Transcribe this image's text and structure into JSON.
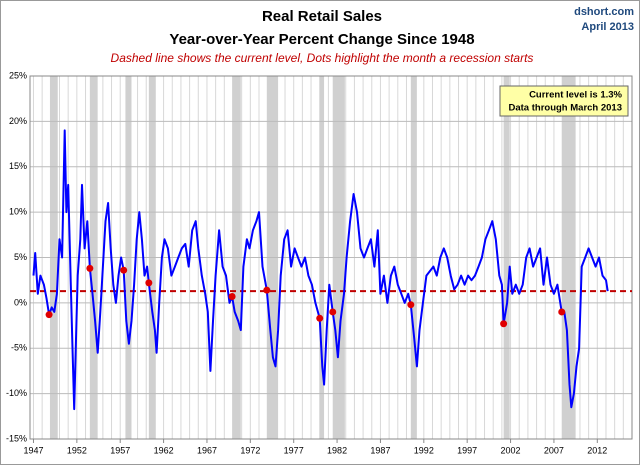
{
  "chart_data": {
    "type": "line",
    "title": "Real Retail Sales",
    "subtitle": "Year-over-Year Percent Change Since 1948",
    "note": "Dashed line shows the current level, Dots highlight the month a recession starts",
    "source": "dshort.com",
    "date": "April 2013",
    "annotation": [
      "Current level is 1.3%",
      "Data through March 2013"
    ],
    "color": "#0000ff",
    "x": [
      1947.0,
      1947.2,
      1947.5,
      1947.8,
      1948.2,
      1948.5,
      1948.8,
      1949.1,
      1949.4,
      1949.7,
      1950.0,
      1950.3,
      1950.6,
      1950.8,
      1951.0,
      1951.3,
      1951.5,
      1951.7,
      1951.9,
      1952.1,
      1952.4,
      1952.6,
      1952.9,
      1953.2,
      1953.5,
      1953.8,
      1954.1,
      1954.4,
      1954.7,
      1955.0,
      1955.3,
      1955.6,
      1955.9,
      1956.2,
      1956.5,
      1956.8,
      1957.1,
      1957.4,
      1957.7,
      1958.0,
      1958.3,
      1958.6,
      1958.9,
      1959.2,
      1959.5,
      1959.8,
      1960.1,
      1960.3,
      1960.7,
      1961.0,
      1961.2,
      1961.5,
      1961.8,
      1962.1,
      1962.5,
      1962.9,
      1963.3,
      1963.7,
      1964.1,
      1964.5,
      1964.9,
      1965.3,
      1965.7,
      1966.0,
      1966.4,
      1966.8,
      1967.1,
      1967.4,
      1967.7,
      1968.0,
      1968.4,
      1968.8,
      1969.2,
      1969.6,
      1969.9,
      1970.2,
      1970.6,
      1970.9,
      1971.2,
      1971.6,
      1971.9,
      1972.3,
      1972.7,
      1973.0,
      1973.4,
      1973.9,
      1974.3,
      1974.6,
      1974.9,
      1975.2,
      1975.5,
      1975.9,
      1976.3,
      1976.7,
      1977.1,
      1977.5,
      1977.9,
      1978.3,
      1978.7,
      1979.1,
      1979.5,
      1980.0,
      1980.3,
      1980.5,
      1980.8,
      1981.1,
      1981.5,
      1981.8,
      1982.1,
      1982.4,
      1982.8,
      1983.1,
      1983.5,
      1983.9,
      1984.3,
      1984.7,
      1985.1,
      1985.5,
      1985.9,
      1986.3,
      1986.7,
      1987.0,
      1987.4,
      1987.8,
      1988.2,
      1988.6,
      1989.0,
      1989.4,
      1989.8,
      1990.2,
      1990.5,
      1990.9,
      1991.2,
      1991.5,
      1991.9,
      1992.3,
      1992.7,
      1993.1,
      1993.5,
      1993.9,
      1994.3,
      1994.7,
      1995.1,
      1995.5,
      1995.9,
      1996.3,
      1996.7,
      1997.1,
      1997.5,
      1997.9,
      1998.3,
      1998.7,
      1999.1,
      1999.5,
      1999.9,
      2000.3,
      2000.7,
      2001.0,
      2001.2,
      2001.6,
      2001.9,
      2002.2,
      2002.6,
      2003.0,
      2003.4,
      2003.8,
      2004.2,
      2004.6,
      2005.0,
      2005.4,
      2005.8,
      2006.2,
      2006.6,
      2007.0,
      2007.4,
      2007.9,
      2008.2,
      2008.5,
      2008.8,
      2009.0,
      2009.3,
      2009.6,
      2009.9,
      2010.2,
      2010.6,
      2011.0,
      2011.4,
      2011.8,
      2012.2,
      2012.6,
      2013.0,
      2013.2
    ],
    "values": [
      3,
      5.5,
      1,
      3,
      2,
      0.5,
      -1.3,
      -0.5,
      -1,
      1,
      7,
      5,
      19,
      10,
      13,
      2,
      -5,
      -11.7,
      -4,
      3,
      7,
      13,
      6,
      9,
      3.8,
      1,
      -2,
      -5.5,
      -1,
      4,
      9,
      11,
      6,
      2,
      0,
      3,
      5,
      3.6,
      -2,
      -4.5,
      -2,
      2,
      7,
      10,
      7,
      3,
      4,
      2.2,
      -1,
      -3,
      -5.5,
      0,
      5,
      7,
      6,
      3,
      4,
      5,
      6,
      6.5,
      4,
      8,
      9,
      6,
      3,
      1,
      -1,
      -7.5,
      -2,
      3,
      8,
      4,
      3,
      0,
      0.7,
      -1,
      -2,
      -3,
      4,
      7,
      6,
      8,
      9,
      10,
      4,
      1.4,
      -3,
      -6,
      -7,
      -3,
      3,
      7,
      8,
      4,
      6,
      5,
      4,
      5,
      3,
      2,
      0,
      -1.7,
      -7,
      -9,
      -3,
      2,
      -1,
      -3,
      -6,
      -2,
      1,
      5,
      9,
      12,
      10,
      6,
      5,
      6,
      7,
      4,
      8,
      1,
      3,
      0,
      3,
      4,
      2,
      1,
      0,
      1,
      -0.2,
      -4,
      -7,
      -3,
      0,
      3,
      3.5,
      4,
      3,
      5,
      6,
      5,
      3,
      1.5,
      2,
      3,
      2,
      3,
      2.5,
      3,
      4,
      5,
      7,
      8,
      9,
      7,
      3,
      2,
      -2.3,
      0,
      4,
      1,
      2,
      1,
      2,
      5,
      6,
      4,
      5,
      6,
      2,
      5,
      2,
      1,
      2,
      -1,
      -1,
      -3,
      -9,
      -11.5,
      -10,
      -7,
      -5,
      4,
      5,
      6,
      5,
      4,
      5,
      3,
      2.5,
      1.3
    ],
    "recessions": [
      [
        1948.9,
        1949.8
      ],
      [
        1953.5,
        1954.4
      ],
      [
        1957.6,
        1958.3
      ],
      [
        1960.3,
        1961.1
      ],
      [
        1969.9,
        1970.9
      ],
      [
        1973.9,
        1975.2
      ],
      [
        1980.0,
        1980.5
      ],
      [
        1981.5,
        1982.9
      ],
      [
        1990.5,
        1991.2
      ],
      [
        2001.2,
        2001.9
      ],
      [
        2007.9,
        2009.5
      ]
    ],
    "recession_color": "#d0d0d0",
    "dots": {
      "x": [
        1948.8,
        1953.5,
        1957.4,
        1960.3,
        1969.9,
        1973.9,
        1980.0,
        1981.5,
        1990.5,
        2001.2,
        2007.9
      ],
      "values": [
        -1.3,
        3.8,
        3.6,
        2.2,
        0.7,
        1.4,
        -1.7,
        -1.0,
        -0.2,
        -2.3,
        -1.0
      ],
      "color": "#e00000"
    },
    "reference_line": {
      "value": 1.3,
      "color": "#c00000"
    },
    "xlim": [
      1946.6,
      2016
    ],
    "xticks": [
      1947,
      1952,
      1957,
      1962,
      1967,
      1972,
      1977,
      1982,
      1987,
      1992,
      1997,
      2002,
      2007,
      2012
    ],
    "x_grid_step": 1,
    "ylim": [
      -15,
      25
    ],
    "yticks": [
      {
        "value": -15,
        "label": "-15%"
      },
      {
        "value": -10,
        "label": "-10%"
      },
      {
        "value": -5,
        "label": "-5%"
      },
      {
        "value": 0,
        "label": "0%"
      },
      {
        "value": 5,
        "label": "5%"
      },
      {
        "value": 10,
        "label": "10%"
      },
      {
        "value": 15,
        "label": "15%"
      },
      {
        "value": 20,
        "label": "20%"
      },
      {
        "value": 25,
        "label": "25%"
      }
    ],
    "grid": true
  }
}
